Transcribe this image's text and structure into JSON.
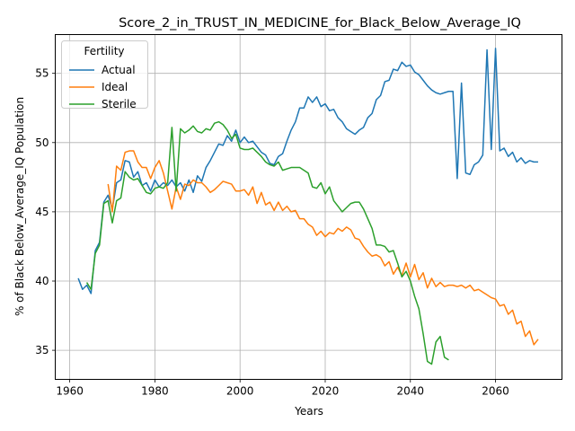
{
  "chart_data": {
    "type": "line",
    "title": "Score_2_in_TRUST_IN_MEDICINE_for_Black_Below_Average_IQ",
    "xlabel": "Years",
    "ylabel": "% of Black Below_Average_IQ Population",
    "xlim": [
      1956.6,
      2075.6
    ],
    "ylim": [
      32.9,
      57.8
    ],
    "xticks": [
      1960,
      1980,
      2000,
      2020,
      2040,
      2060
    ],
    "yticks": [
      35,
      40,
      45,
      50,
      55
    ],
    "grid": true,
    "legend": {
      "title": "Fertility",
      "position": "top-left"
    },
    "series": [
      {
        "name": "Actual",
        "color": "#1f77b4",
        "x": [
          1962,
          1963,
          1964,
          1965,
          1966,
          1967,
          1968,
          1969,
          1970,
          1971,
          1972,
          1973,
          1974,
          1975,
          1976,
          1977,
          1978,
          1979,
          1980,
          1981,
          1982,
          1983,
          1984,
          1985,
          1986,
          1987,
          1988,
          1989,
          1990,
          1991,
          1992,
          1993,
          1994,
          1995,
          1996,
          1997,
          1998,
          1999,
          2000,
          2001,
          2002,
          2003,
          2004,
          2005,
          2006,
          2007,
          2008,
          2009,
          2010,
          2011,
          2012,
          2013,
          2014,
          2015,
          2016,
          2017,
          2018,
          2019,
          2020,
          2021,
          2022,
          2023,
          2024,
          2025,
          2026,
          2027,
          2028,
          2029,
          2030,
          2031,
          2032,
          2033,
          2034,
          2035,
          2036,
          2037,
          2038,
          2039,
          2040,
          2041,
          2042,
          2043,
          2044,
          2045,
          2046,
          2047,
          2048,
          2049,
          2050,
          2051,
          2052,
          2053,
          2054,
          2055,
          2056,
          2057,
          2058,
          2059,
          2060,
          2061,
          2062,
          2063,
          2064,
          2065,
          2066,
          2067,
          2068,
          2069,
          2070
        ],
        "values": [
          40.2,
          39.4,
          39.7,
          39.1,
          42.2,
          42.8,
          45.7,
          46.2,
          45.2,
          47.1,
          47.3,
          48.7,
          48.6,
          47.5,
          47.9,
          46.9,
          47.1,
          46.5,
          47.3,
          46.8,
          47.1,
          46.9,
          47.3,
          46.8,
          47.1,
          46.5,
          47.3,
          46.4,
          47.6,
          47.2,
          48.2,
          48.7,
          49.3,
          49.9,
          49.8,
          50.5,
          50.1,
          50.9,
          50.0,
          50.4,
          50.0,
          50.1,
          49.7,
          49.3,
          49.1,
          48.5,
          48.4,
          49.0,
          49.2,
          50.1,
          50.9,
          51.5,
          52.5,
          52.5,
          53.3,
          52.9,
          53.3,
          52.6,
          52.8,
          52.3,
          52.4,
          51.8,
          51.5,
          51.0,
          50.8,
          50.6,
          50.9,
          51.1,
          51.8,
          52.1,
          53.1,
          53.4,
          54.4,
          54.5,
          55.3,
          55.2,
          55.8,
          55.5,
          55.6,
          55.1,
          54.9,
          54.5,
          54.1,
          53.8,
          53.6,
          53.5,
          53.6,
          53.7,
          53.7,
          47.4,
          54.3,
          47.8,
          47.7,
          48.4,
          48.6,
          49.1,
          56.7,
          49.5,
          56.8,
          49.4,
          49.6,
          49.0,
          49.3,
          48.6,
          48.9,
          48.5,
          48.7,
          48.6,
          48.6
        ]
      },
      {
        "name": "Ideal",
        "color": "#ff7f0e",
        "x": [
          1969,
          1970,
          1971,
          1972,
          1973,
          1974,
          1975,
          1976,
          1977,
          1978,
          1979,
          1980,
          1981,
          1982,
          1983,
          1984,
          1985,
          1986,
          1987,
          1988,
          1989,
          1990,
          1991,
          1992,
          1993,
          1994,
          1995,
          1996,
          1997,
          1998,
          1999,
          2000,
          2001,
          2002,
          2003,
          2004,
          2005,
          2006,
          2007,
          2008,
          2009,
          2010,
          2011,
          2012,
          2013,
          2014,
          2015,
          2016,
          2017,
          2018,
          2019,
          2020,
          2021,
          2022,
          2023,
          2024,
          2025,
          2026,
          2027,
          2028,
          2029,
          2030,
          2031,
          2032,
          2033,
          2034,
          2035,
          2036,
          2037,
          2038,
          2039,
          2040,
          2041,
          2042,
          2043,
          2044,
          2045,
          2046,
          2047,
          2048,
          2049,
          2050,
          2051,
          2052,
          2053,
          2054,
          2055,
          2056,
          2057,
          2058,
          2059,
          2060,
          2061,
          2062,
          2063,
          2064,
          2065,
          2066,
          2067,
          2068,
          2069,
          2070
        ],
        "values": [
          47.0,
          45.0,
          48.3,
          48.0,
          49.3,
          49.4,
          49.4,
          48.6,
          48.2,
          48.2,
          47.4,
          48.2,
          48.7,
          47.8,
          46.5,
          45.2,
          46.8,
          45.9,
          47.0,
          46.9,
          47.3,
          47.1,
          47.1,
          46.8,
          46.4,
          46.6,
          46.9,
          47.2,
          47.1,
          47.0,
          46.5,
          46.5,
          46.6,
          46.2,
          46.8,
          45.6,
          46.4,
          45.5,
          45.7,
          45.1,
          45.7,
          45.1,
          45.4,
          45.0,
          45.1,
          44.5,
          44.5,
          44.1,
          43.9,
          43.3,
          43.6,
          43.2,
          43.5,
          43.4,
          43.8,
          43.6,
          43.9,
          43.7,
          43.1,
          43.0,
          42.5,
          42.1,
          41.8,
          41.9,
          41.7,
          41.1,
          41.4,
          40.5,
          41.0,
          40.4,
          41.3,
          40.3,
          41.2,
          40.1,
          40.6,
          39.5,
          40.2,
          39.6,
          39.9,
          39.6,
          39.7,
          39.7,
          39.6,
          39.7,
          39.5,
          39.7,
          39.3,
          39.4,
          39.2,
          39.0,
          38.8,
          38.7,
          38.2,
          38.3,
          37.6,
          37.9,
          36.9,
          37.1,
          36.0,
          36.4,
          35.4,
          35.8
        ]
      },
      {
        "name": "Sterile",
        "color": "#2ca02c",
        "x": [
          1964,
          1965,
          1966,
          1967,
          1968,
          1969,
          1970,
          1971,
          1972,
          1973,
          1974,
          1975,
          1976,
          1977,
          1978,
          1979,
          1980,
          1981,
          1982,
          1983,
          1984,
          1985,
          1986,
          1987,
          1988,
          1989,
          1990,
          1991,
          1992,
          1993,
          1994,
          1995,
          1996,
          1997,
          1998,
          1999,
          2000,
          2001,
          2002,
          2003,
          2004,
          2005,
          2006,
          2007,
          2008,
          2009,
          2010,
          2011,
          2012,
          2013,
          2014,
          2015,
          2016,
          2017,
          2018,
          2019,
          2020,
          2021,
          2022,
          2023,
          2024,
          2025,
          2026,
          2027,
          2028,
          2029,
          2030,
          2031,
          2032,
          2033,
          2034,
          2035,
          2036,
          2037,
          2038,
          2039,
          2040,
          2041,
          2042,
          2043,
          2044,
          2045,
          2046,
          2047,
          2048,
          2049
        ],
        "values": [
          39.9,
          39.4,
          42.0,
          42.6,
          45.6,
          45.8,
          44.2,
          45.8,
          46.0,
          47.9,
          47.5,
          47.3,
          47.4,
          46.9,
          46.4,
          46.3,
          46.7,
          46.8,
          46.7,
          47.1,
          51.1,
          46.5,
          51.0,
          50.7,
          50.9,
          51.2,
          50.8,
          50.7,
          51.0,
          50.9,
          51.4,
          51.5,
          51.3,
          50.9,
          50.3,
          50.6,
          49.6,
          49.5,
          49.5,
          49.6,
          49.3,
          49.0,
          48.6,
          48.4,
          48.3,
          48.6,
          48.0,
          48.1,
          48.2,
          48.2,
          48.2,
          48.0,
          47.8,
          46.8,
          46.7,
          47.1,
          46.3,
          46.8,
          45.8,
          45.4,
          45.0,
          45.3,
          45.6,
          45.7,
          45.7,
          45.2,
          44.5,
          43.8,
          42.6,
          42.6,
          42.5,
          42.1,
          42.2,
          41.3,
          40.3,
          40.7,
          40.0,
          38.9,
          38.0,
          36.2,
          34.2,
          34.0,
          35.6,
          36.0,
          34.5,
          34.3
        ]
      }
    ]
  }
}
